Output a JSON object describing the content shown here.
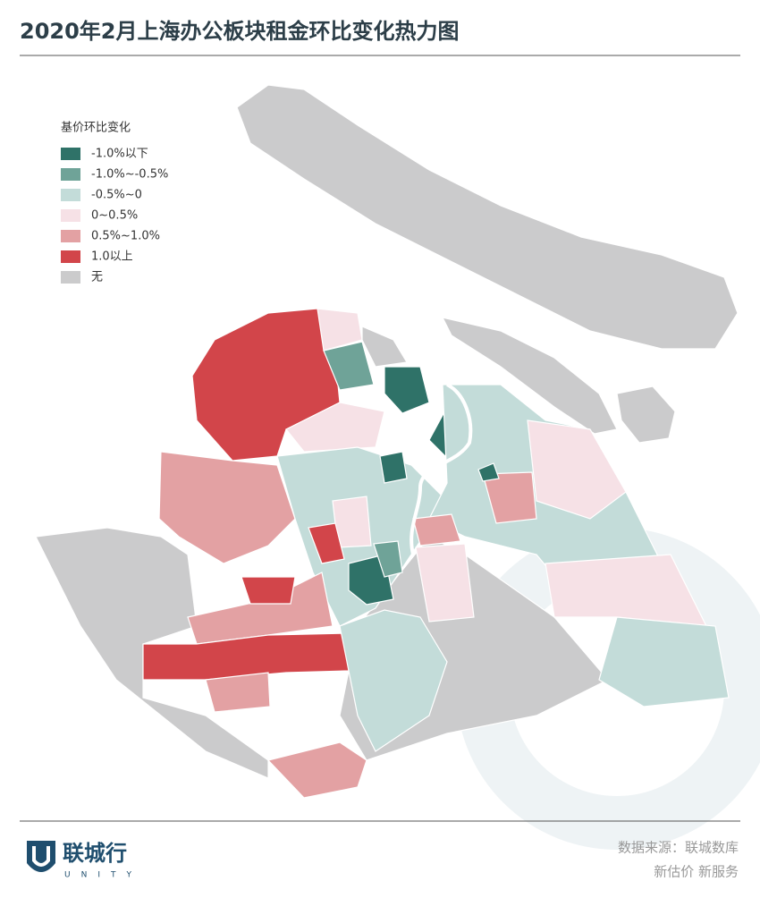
{
  "header": {
    "title": "2020年2月上海办公板块租金环比变化热力图"
  },
  "legend": {
    "title": "基价环比变化",
    "items": [
      {
        "label": "-1.0%以下",
        "color": "#2f7268"
      },
      {
        "label": "-1.0%~-0.5%",
        "color": "#6fa398"
      },
      {
        "label": "-0.5%~0",
        "color": "#c3dcd9"
      },
      {
        "label": "0~0.5%",
        "color": "#f6e1e6"
      },
      {
        "label": "0.5%~1.0%",
        "color": "#e3a1a3"
      },
      {
        "label": "1.0以上",
        "color": "#d2454a"
      },
      {
        "label": "无",
        "color": "#cbcbcc"
      }
    ]
  },
  "footer": {
    "brand": "联城行",
    "brand_sub": "UNITY",
    "source": "数据来源：联城数库",
    "slogan": "新估价 新服务"
  }
}
